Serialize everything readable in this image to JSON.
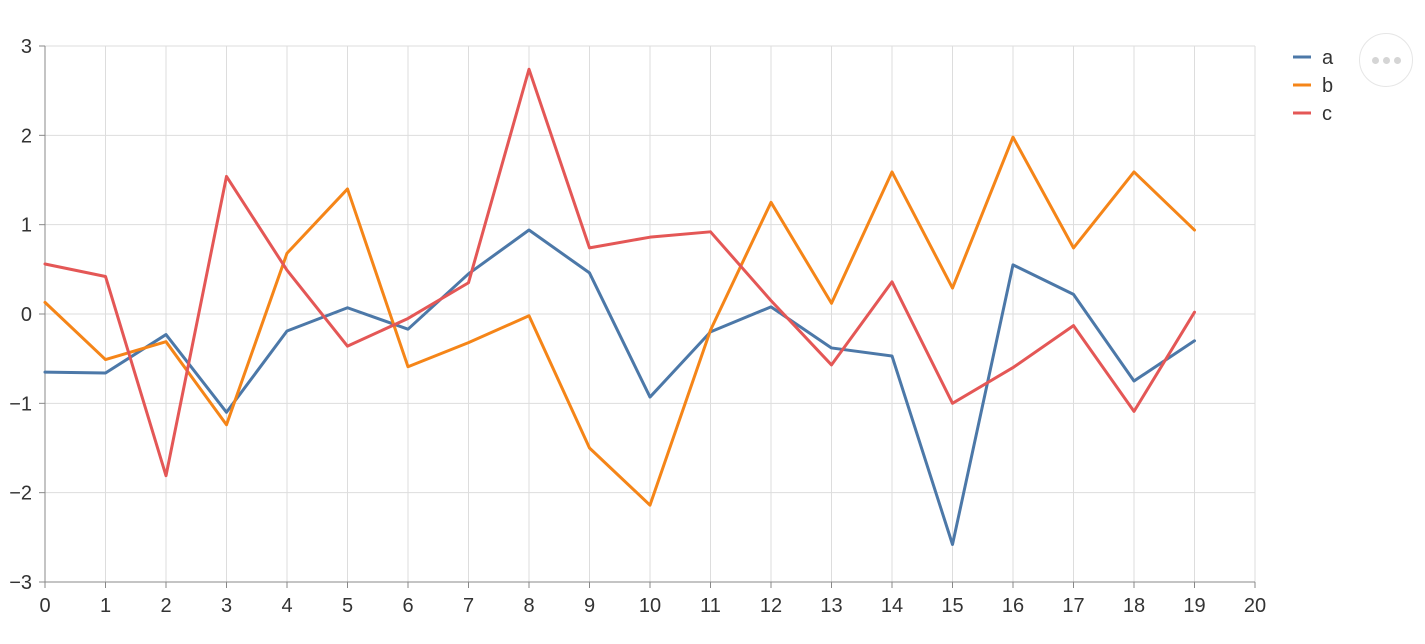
{
  "chart_data": {
    "type": "line",
    "x": [
      0,
      1,
      2,
      3,
      4,
      5,
      6,
      7,
      8,
      9,
      10,
      11,
      12,
      13,
      14,
      15,
      16,
      17,
      18,
      19
    ],
    "series": [
      {
        "name": "a",
        "color": "#4c78a8",
        "values": [
          -0.65,
          -0.66,
          -0.23,
          -1.1,
          -0.19,
          0.07,
          -0.17,
          0.45,
          0.94,
          0.46,
          -0.93,
          -0.2,
          0.08,
          -0.38,
          -0.47,
          -2.58,
          0.55,
          0.22,
          -0.75,
          -0.3
        ]
      },
      {
        "name": "b",
        "color": "#f58518",
        "values": [
          0.13,
          -0.51,
          -0.31,
          -1.24,
          0.68,
          1.4,
          -0.59,
          -0.32,
          -0.02,
          -1.5,
          -2.14,
          -0.18,
          1.25,
          0.12,
          1.59,
          0.29,
          1.98,
          0.74,
          1.59,
          0.94
        ]
      },
      {
        "name": "c",
        "color": "#e45756",
        "values": [
          0.56,
          0.42,
          -1.81,
          1.54,
          0.49,
          -0.36,
          -0.05,
          0.35,
          2.74,
          0.74,
          0.86,
          0.92,
          0.15,
          -0.57,
          0.36,
          -1.0,
          -0.6,
          -0.13,
          -1.09,
          0.02
        ]
      }
    ],
    "xlim": [
      0,
      20
    ],
    "ylim": [
      -3,
      3
    ],
    "x_ticks": [
      "0",
      "1",
      "2",
      "3",
      "4",
      "5",
      "6",
      "7",
      "8",
      "9",
      "10",
      "11",
      "12",
      "13",
      "14",
      "15",
      "16",
      "17",
      "18",
      "19",
      "20"
    ],
    "y_ticks": [
      "−3",
      "−2",
      "−1",
      "0",
      "1",
      "2",
      "3"
    ],
    "grid": true,
    "legend_position": "top-right",
    "title": "",
    "xlabel": "",
    "ylabel": ""
  },
  "menu": {
    "icon": "more-horizontal-icon"
  }
}
